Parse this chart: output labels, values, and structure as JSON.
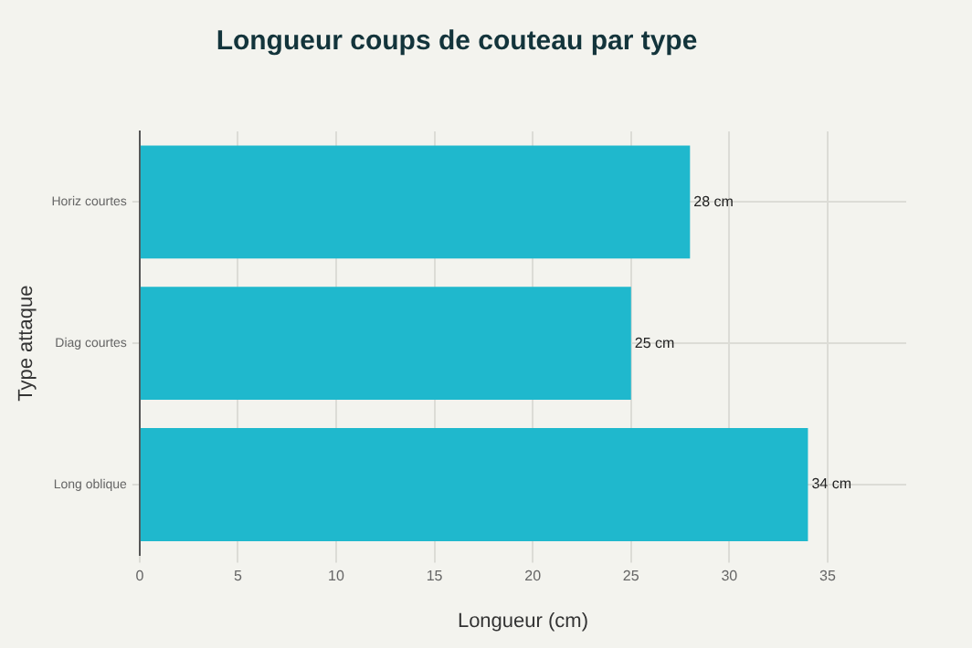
{
  "chart_data": {
    "type": "bar",
    "orientation": "horizontal",
    "title": "Longueur coups de couteau par type",
    "xlabel": "Longueur (cm)",
    "ylabel": "Type attaque",
    "categories": [
      "Horiz courtes",
      "Diag courtes",
      "Long oblique"
    ],
    "values": [
      28,
      25,
      34
    ],
    "color": "#1fb8cd",
    "value_labels": [
      "28 cm",
      "25 cm",
      "34 cm"
    ],
    "xlim": [
      0,
      39
    ],
    "xticks": [
      0,
      5,
      10,
      15,
      20,
      25,
      30,
      35
    ],
    "grid": true,
    "legend": false
  }
}
